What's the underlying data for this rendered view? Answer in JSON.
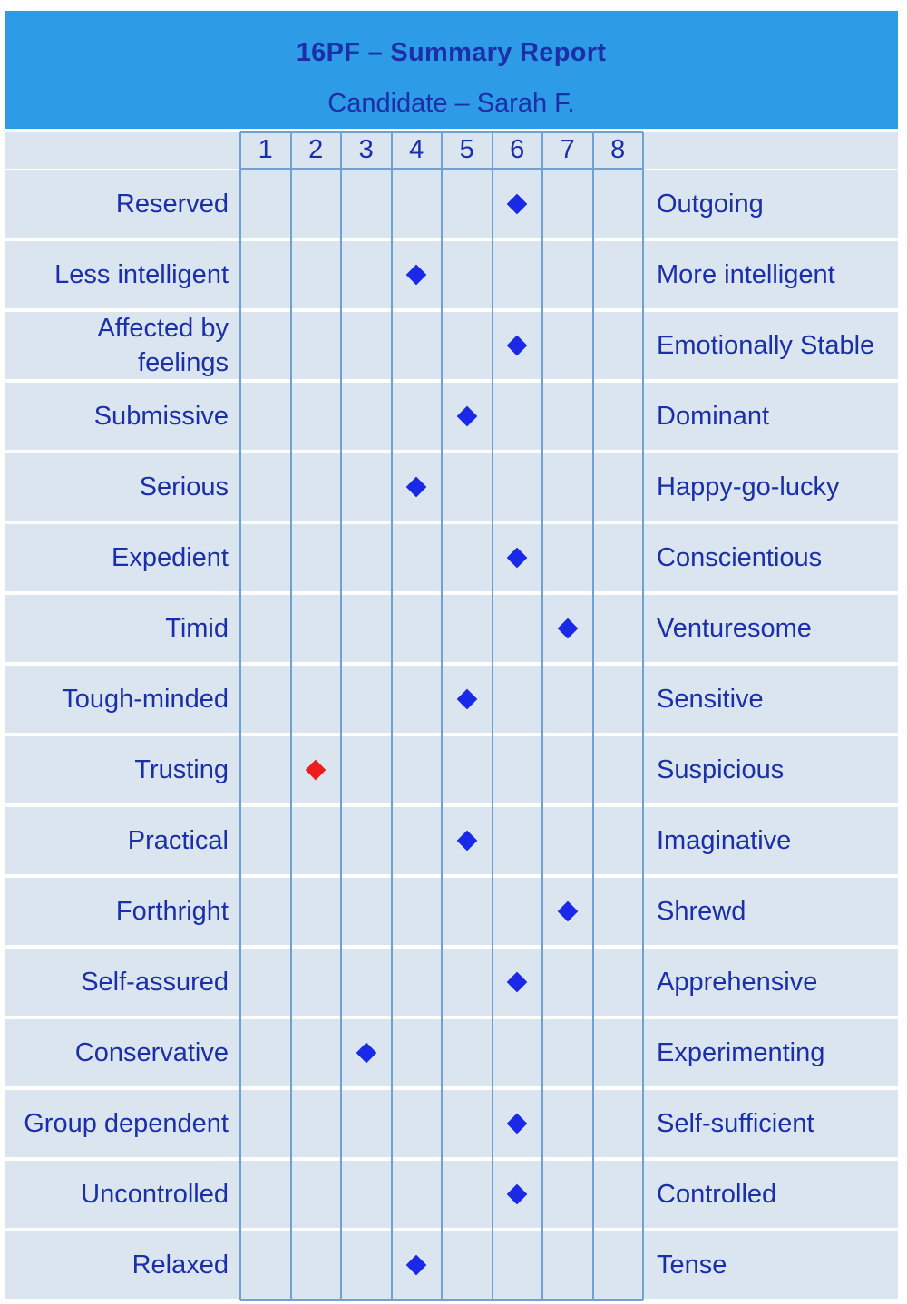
{
  "title": "16PF – Summary Report",
  "subtitle": "Candidate – Sarah F.",
  "colors": {
    "header_bg": "#2e9be6",
    "text": "#1a2fa8",
    "row_bg": "#dae5f0",
    "grid_line": "#6fa2d3",
    "marker_default": "#1a28e8",
    "marker_highlight": "#ee1c1c"
  },
  "chart_data": {
    "type": "scatter",
    "title": "16PF – Summary Report",
    "subtitle": "Candidate – Sarah F.",
    "scale": [
      "1",
      "2",
      "3",
      "4",
      "5",
      "6",
      "7",
      "8"
    ],
    "xlim": [
      1,
      8
    ],
    "grid": true,
    "rows": [
      {
        "left": "Reserved",
        "right": "Outgoing",
        "score": 6
      },
      {
        "left": "Less intelligent",
        "right": "More intelligent",
        "score": 4
      },
      {
        "left": "Affected by feelings",
        "right": "Emotionally Stable",
        "score": 6
      },
      {
        "left": "Submissive",
        "right": "Dominant",
        "score": 5
      },
      {
        "left": "Serious",
        "right": "Happy-go-lucky",
        "score": 4
      },
      {
        "left": "Expedient",
        "right": "Conscientious",
        "score": 6
      },
      {
        "left": "Timid",
        "right": "Venturesome",
        "score": 7
      },
      {
        "left": "Tough-minded",
        "right": "Sensitive",
        "score": 5
      },
      {
        "left": "Trusting",
        "right": "Suspicious",
        "score": 2,
        "highlight": true
      },
      {
        "left": "Practical",
        "right": "Imaginative",
        "score": 5
      },
      {
        "left": "Forthright",
        "right": "Shrewd",
        "score": 7
      },
      {
        "left": "Self-assured",
        "right": "Apprehensive",
        "score": 6
      },
      {
        "left": "Conservative",
        "right": "Experimenting",
        "score": 3
      },
      {
        "left": "Group dependent",
        "right": "Self-sufficient",
        "score": 6
      },
      {
        "left": "Uncontrolled",
        "right": "Controlled",
        "score": 6
      },
      {
        "left": "Relaxed",
        "right": "Tense",
        "score": 4
      }
    ]
  }
}
